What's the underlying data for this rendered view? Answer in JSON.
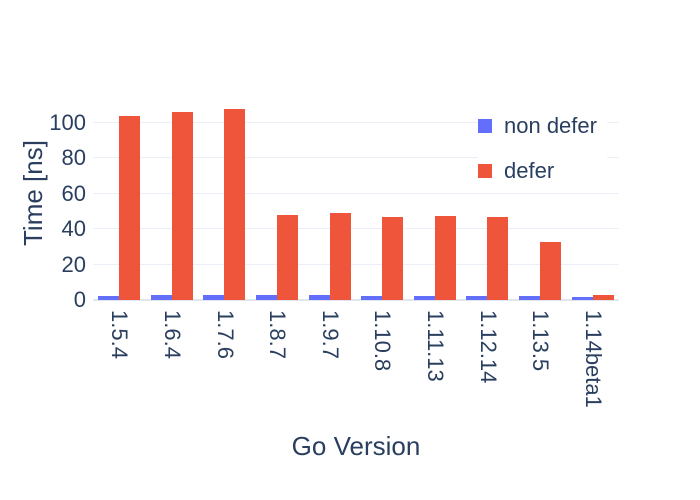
{
  "chart_data": {
    "type": "bar",
    "title": "",
    "xlabel": "Go Version",
    "ylabel": "Time [ns]",
    "categories": [
      "1.5.4",
      "1.6.4",
      "1.7.6",
      "1.8.7",
      "1.9.7",
      "1.10.8",
      "1.11.13",
      "1.12.14",
      "1.13.5",
      "1.14beta1"
    ],
    "series": [
      {
        "name": "non defer",
        "color": "#636EFA",
        "values": [
          2.5,
          3,
          3,
          3,
          3,
          2.5,
          2.5,
          2.5,
          2.5,
          2
        ]
      },
      {
        "name": "defer",
        "color": "#EF553B",
        "values": [
          104,
          106,
          108,
          48,
          49,
          47,
          47.5,
          47,
          33,
          3
        ]
      }
    ],
    "ylim": [
      0,
      113
    ],
    "yticks": [
      0,
      20,
      40,
      60,
      80,
      100
    ],
    "grid": true,
    "legend_position": "top-right"
  },
  "style": {
    "text_color": "#2a3f5f",
    "grid_color": "#ebf0f8",
    "zero_line_color": "#dfe6f0",
    "plot_bg": "#ffffff",
    "paper_bg": "#ffffff"
  }
}
